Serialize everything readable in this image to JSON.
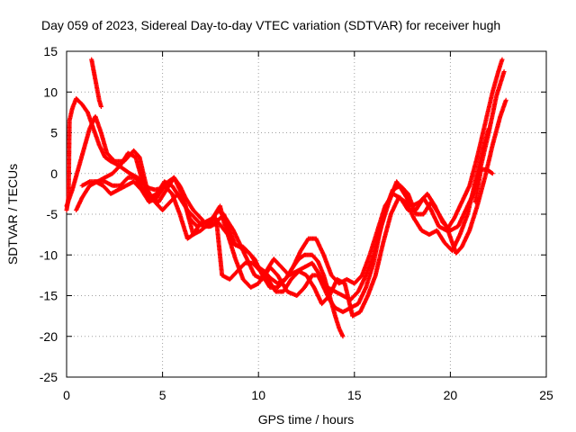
{
  "chart_data": {
    "type": "scatter",
    "title": "Day 059 of 2023, Sidereal Day-to-day VTEC variation (SDTVAR) for receiver hugh",
    "xlabel": "GPS time / hours",
    "ylabel": "SDTVAR / TECUs",
    "xlim": [
      0,
      25
    ],
    "ylim": [
      -25,
      15
    ],
    "xticks": [
      0,
      5,
      10,
      15,
      20,
      25
    ],
    "yticks": [
      15,
      10,
      5,
      0,
      -5,
      -10,
      -15,
      -20,
      -25
    ],
    "grid": true,
    "legend": "none",
    "marker": "plus",
    "color": "#ff0000",
    "series": [
      {
        "values": [
          [
            0.0,
            -4.5
          ],
          [
            0.1,
            -3.0
          ],
          [
            0.15,
            6.5
          ],
          [
            0.3,
            8.0
          ],
          [
            0.5,
            9.2
          ],
          [
            0.8,
            8.5
          ],
          [
            1.1,
            7.5
          ],
          [
            1.4,
            5.5
          ],
          [
            1.7,
            3.5
          ],
          [
            2.0,
            2.0
          ],
          [
            2.3,
            1.5
          ],
          [
            2.7,
            1.0
          ],
          [
            3.0,
            0.5
          ],
          [
            3.3,
            0.0
          ],
          [
            3.7,
            -0.5
          ],
          [
            4.0,
            -1.2
          ],
          [
            4.3,
            -1.8
          ],
          [
            4.6,
            -2.0
          ],
          [
            5.0,
            -1.8
          ],
          [
            5.3,
            -1.0
          ],
          [
            5.6,
            -0.5
          ],
          [
            5.9,
            -1.5
          ],
          [
            6.2,
            -3.0
          ],
          [
            6.6,
            -4.5
          ],
          [
            7.0,
            -5.5
          ],
          [
            7.4,
            -6.5
          ],
          [
            7.8,
            -6.0
          ],
          [
            8.2,
            -5.0
          ],
          [
            8.5,
            -7.0
          ],
          [
            8.8,
            -8.8
          ],
          [
            9.2,
            -9.0
          ],
          [
            9.6,
            -10.0
          ],
          [
            10.0,
            -11.5
          ],
          [
            10.3,
            -12.0
          ],
          [
            10.6,
            -12.8
          ],
          [
            11.0,
            -13.5
          ],
          [
            11.4,
            -13.0
          ],
          [
            11.8,
            -11.5
          ],
          [
            12.1,
            -10.5
          ],
          [
            12.4,
            -10.0
          ],
          [
            12.8,
            -10.0
          ],
          [
            13.1,
            -10.8
          ],
          [
            13.4,
            -12.5
          ],
          [
            13.7,
            -15.0
          ],
          [
            14.0,
            -17.5
          ],
          [
            14.2,
            -19.0
          ],
          [
            14.4,
            -20.0
          ]
        ]
      },
      {
        "values": [
          [
            1.3,
            14.0
          ],
          [
            1.5,
            11.5
          ],
          [
            1.7,
            9.0
          ],
          [
            1.8,
            8.2
          ]
        ]
      },
      {
        "values": [
          [
            0.0,
            -4.0
          ],
          [
            0.3,
            -2.0
          ],
          [
            0.6,
            0.5
          ],
          [
            0.9,
            3.0
          ],
          [
            1.2,
            5.5
          ],
          [
            1.5,
            7.0
          ],
          [
            1.8,
            5.0
          ],
          [
            2.1,
            2.5
          ],
          [
            2.5,
            1.5
          ],
          [
            3.0,
            1.5
          ],
          [
            3.5,
            2.8
          ],
          [
            3.8,
            2.0
          ],
          [
            4.0,
            0.0
          ],
          [
            4.2,
            -2.0
          ],
          [
            4.6,
            -3.5
          ],
          [
            5.0,
            -4.5
          ],
          [
            5.4,
            -3.5
          ],
          [
            5.8,
            -2.5
          ],
          [
            6.2,
            -4.0
          ],
          [
            6.6,
            -7.5
          ],
          [
            7.0,
            -7.0
          ],
          [
            7.5,
            -6.0
          ],
          [
            7.9,
            -4.5
          ],
          [
            8.3,
            -5.5
          ],
          [
            8.7,
            -7.0
          ],
          [
            9.1,
            -9.0
          ],
          [
            9.5,
            -11.0
          ],
          [
            9.8,
            -12.5
          ],
          [
            10.2,
            -13.0
          ],
          [
            10.6,
            -11.5
          ],
          [
            11.0,
            -12.5
          ],
          [
            11.5,
            -14.5
          ],
          [
            12.0,
            -15.0
          ],
          [
            12.4,
            -14.0
          ],
          [
            12.8,
            -12.5
          ],
          [
            13.1,
            -12.5
          ],
          [
            13.4,
            -14.0
          ],
          [
            13.7,
            -15.5
          ],
          [
            14.0,
            -16.5
          ],
          [
            14.4,
            -17.0
          ],
          [
            14.8,
            -16.5
          ],
          [
            15.2,
            -16.0
          ],
          [
            15.6,
            -14.0
          ],
          [
            16.0,
            -11.0
          ],
          [
            16.3,
            -7.5
          ],
          [
            16.6,
            -4.5
          ],
          [
            17.0,
            -2.0
          ],
          [
            17.4,
            -1.5
          ],
          [
            17.8,
            -2.5
          ],
          [
            18.2,
            -5.0
          ],
          [
            18.6,
            -5.0
          ],
          [
            19.0,
            -3.5
          ],
          [
            19.4,
            -5.0
          ],
          [
            19.8,
            -6.5
          ],
          [
            20.1,
            -8.5
          ],
          [
            20.3,
            -9.8
          ],
          [
            20.6,
            -9.0
          ],
          [
            21.0,
            -7.0
          ],
          [
            21.4,
            -4.0
          ],
          [
            21.8,
            -0.5
          ],
          [
            22.2,
            3.5
          ],
          [
            22.6,
            7.0
          ],
          [
            22.9,
            9.0
          ]
        ]
      },
      {
        "values": [
          [
            0.5,
            -4.5
          ],
          [
            0.8,
            -3.0
          ],
          [
            1.2,
            -1.5
          ],
          [
            1.6,
            -1.0
          ],
          [
            2.0,
            -0.5
          ],
          [
            2.4,
            0.0
          ],
          [
            2.8,
            1.0
          ],
          [
            3.2,
            2.5
          ],
          [
            3.6,
            2.0
          ],
          [
            3.9,
            -0.5
          ],
          [
            4.3,
            -3.0
          ],
          [
            4.7,
            -2.5
          ],
          [
            5.1,
            -1.0
          ],
          [
            5.5,
            -1.5
          ],
          [
            5.9,
            -3.0
          ],
          [
            6.3,
            -4.5
          ],
          [
            6.7,
            -5.5
          ],
          [
            7.1,
            -6.5
          ],
          [
            7.5,
            -6.5
          ],
          [
            7.9,
            -6.0
          ],
          [
            8.4,
            -7.5
          ],
          [
            8.8,
            -10.5
          ],
          [
            9.2,
            -13.0
          ],
          [
            9.6,
            -14.0
          ],
          [
            10.0,
            -13.5
          ],
          [
            10.4,
            -12.0
          ],
          [
            10.8,
            -10.5
          ],
          [
            11.2,
            -11.5
          ],
          [
            11.6,
            -12.5
          ],
          [
            12.0,
            -12.0
          ],
          [
            12.4,
            -11.5
          ],
          [
            12.8,
            -11.0
          ],
          [
            13.2,
            -12.5
          ],
          [
            13.6,
            -14.0
          ],
          [
            14.0,
            -14.5
          ],
          [
            14.4,
            -15.0
          ],
          [
            14.8,
            -15.5
          ],
          [
            15.2,
            -14.5
          ],
          [
            15.6,
            -12.5
          ],
          [
            16.0,
            -10.0
          ],
          [
            16.4,
            -6.5
          ],
          [
            16.8,
            -3.5
          ],
          [
            17.2,
            -1.0
          ],
          [
            17.6,
            -2.5
          ],
          [
            18.0,
            -4.0
          ],
          [
            18.4,
            -3.5
          ],
          [
            18.8,
            -2.5
          ],
          [
            19.2,
            -4.0
          ],
          [
            19.6,
            -6.0
          ],
          [
            20.0,
            -7.0
          ],
          [
            20.4,
            -6.5
          ],
          [
            20.8,
            -4.5
          ],
          [
            21.2,
            -2.5
          ],
          [
            21.6,
            1.0
          ],
          [
            22.0,
            5.0
          ],
          [
            22.4,
            9.5
          ],
          [
            22.8,
            12.5
          ]
        ]
      },
      {
        "values": [
          [
            0.8,
            -1.5
          ],
          [
            1.2,
            -1.0
          ],
          [
            1.6,
            -1.0
          ],
          [
            2.0,
            -1.0
          ],
          [
            2.4,
            -1.5
          ],
          [
            2.8,
            -1.5
          ],
          [
            3.2,
            -0.5
          ],
          [
            3.6,
            -0.5
          ],
          [
            4.0,
            -2.0
          ],
          [
            4.4,
            -3.0
          ],
          [
            4.8,
            -3.5
          ],
          [
            5.2,
            -2.0
          ],
          [
            5.6,
            -0.5
          ],
          [
            6.0,
            -2.5
          ],
          [
            6.4,
            -5.5
          ],
          [
            6.8,
            -6.5
          ],
          [
            7.2,
            -6.0
          ],
          [
            7.6,
            -5.5
          ],
          [
            8.0,
            -4.0
          ],
          [
            8.2,
            -6.0
          ],
          [
            8.6,
            -8.5
          ],
          [
            9.0,
            -9.0
          ],
          [
            9.4,
            -9.5
          ],
          [
            9.8,
            -10.5
          ],
          [
            10.2,
            -12.5
          ],
          [
            10.6,
            -14.0
          ],
          [
            11.0,
            -14.0
          ],
          [
            11.4,
            -13.0
          ],
          [
            11.8,
            -11.5
          ],
          [
            12.2,
            -9.5
          ],
          [
            12.6,
            -8.0
          ],
          [
            13.0,
            -8.0
          ],
          [
            13.4,
            -10.0
          ],
          [
            13.8,
            -12.5
          ],
          [
            14.2,
            -13.5
          ],
          [
            14.6,
            -13.0
          ],
          [
            15.0,
            -13.5
          ],
          [
            15.4,
            -12.5
          ],
          [
            15.8,
            -10.0
          ],
          [
            16.2,
            -7.0
          ],
          [
            16.6,
            -4.0
          ],
          [
            17.0,
            -2.5
          ],
          [
            17.4,
            -3.0
          ],
          [
            17.8,
            -4.5
          ],
          [
            18.2,
            -4.5
          ],
          [
            18.6,
            -3.0
          ],
          [
            19.0,
            -4.5
          ],
          [
            19.4,
            -6.5
          ],
          [
            19.8,
            -7.0
          ],
          [
            20.2,
            -5.5
          ],
          [
            20.6,
            -3.5
          ],
          [
            21.0,
            -1.5
          ],
          [
            21.4,
            2.0
          ],
          [
            21.8,
            6.0
          ],
          [
            22.2,
            10.0
          ],
          [
            22.5,
            12.5
          ],
          [
            22.7,
            14.0
          ]
        ]
      },
      {
        "values": [
          [
            1.5,
            -1.0
          ],
          [
            1.9,
            -1.5
          ],
          [
            2.3,
            -2.5
          ],
          [
            2.7,
            -2.0
          ],
          [
            3.1,
            -1.5
          ],
          [
            3.5,
            -1.0
          ],
          [
            3.9,
            -2.0
          ],
          [
            4.3,
            -3.5
          ],
          [
            4.7,
            -3.0
          ],
          [
            5.1,
            -1.5
          ],
          [
            5.5,
            -2.5
          ],
          [
            5.9,
            -5.0
          ],
          [
            6.3,
            -8.0
          ],
          [
            6.6,
            -7.5
          ],
          [
            7.0,
            -6.0
          ],
          [
            7.4,
            -6.0
          ],
          [
            7.8,
            -5.5
          ],
          [
            8.1,
            -12.5
          ],
          [
            8.5,
            -13.0
          ],
          [
            8.9,
            -12.0
          ],
          [
            9.3,
            -11.0
          ],
          [
            9.7,
            -11.0
          ],
          [
            10.1,
            -12.0
          ],
          [
            10.5,
            -13.0
          ],
          [
            10.9,
            -14.5
          ],
          [
            11.3,
            -14.5
          ],
          [
            11.7,
            -13.0
          ],
          [
            12.1,
            -12.0
          ],
          [
            12.5,
            -12.5
          ],
          [
            12.9,
            -14.0
          ],
          [
            13.3,
            -16.0
          ],
          [
            13.7,
            -15.0
          ],
          [
            14.1,
            -13.0
          ],
          [
            14.5,
            -13.5
          ],
          [
            14.9,
            -17.5
          ],
          [
            15.3,
            -17.0
          ],
          [
            15.7,
            -15.0
          ],
          [
            16.1,
            -12.5
          ],
          [
            16.5,
            -8.5
          ],
          [
            16.9,
            -5.0
          ],
          [
            17.3,
            -3.0
          ],
          [
            17.7,
            -3.5
          ],
          [
            18.1,
            -5.5
          ],
          [
            18.5,
            -7.0
          ],
          [
            18.9,
            -7.5
          ],
          [
            19.3,
            -7.0
          ],
          [
            19.7,
            -8.5
          ],
          [
            20.1,
            -9.5
          ],
          [
            20.5,
            -7.5
          ],
          [
            20.9,
            -5.0
          ],
          [
            21.3,
            -1.0
          ],
          [
            21.7,
            3.0
          ],
          [
            22.0,
            5.5
          ]
        ]
      },
      {
        "values": [
          [
            21.3,
            -3.5
          ],
          [
            21.6,
            0.5
          ],
          [
            21.9,
            0.5
          ],
          [
            22.2,
            0.0
          ]
        ]
      }
    ]
  }
}
